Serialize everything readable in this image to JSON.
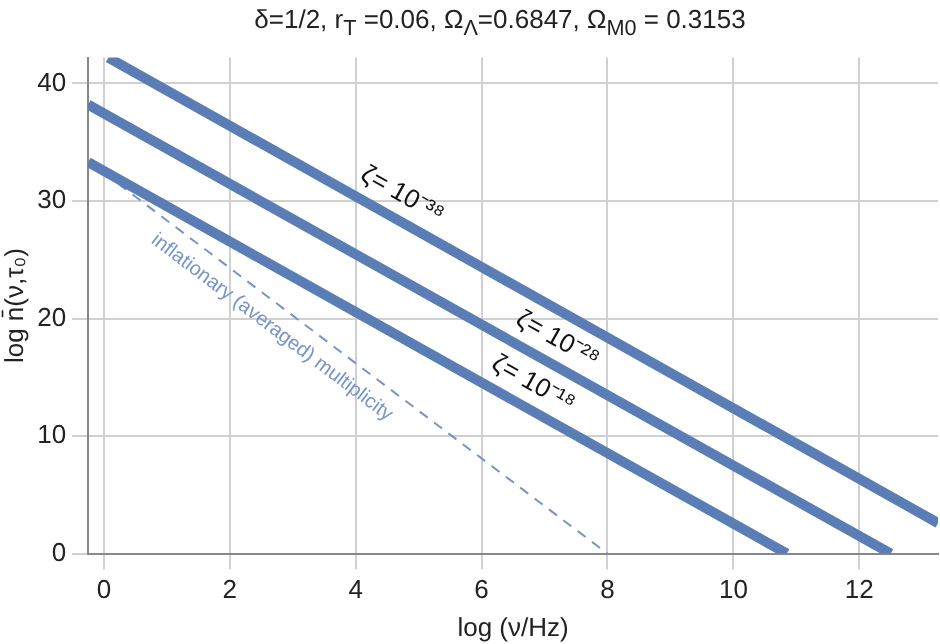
{
  "chart_data": {
    "type": "line",
    "title": "δ=1/2, r$_{T}$ =0.06, Ω$_{Λ}$=0.6847,  Ω$_{M0}$ = 0.3153",
    "xlabel": "log (ν/Hz)",
    "ylabel": "log n̄(ν,τ₀)",
    "xlim": [
      -0.25,
      13.25
    ],
    "ylim": [
      0,
      42.2
    ],
    "xticks": [
      0,
      2,
      4,
      6,
      8,
      10,
      12
    ],
    "yticks": [
      0,
      10,
      20,
      30,
      40
    ],
    "grid": true,
    "legend": false,
    "marker": "none",
    "series": [
      {
        "name": "ζ= 10⁻³⁸",
        "color": "#5a7db5",
        "x": [
          0.07,
          13.25
        ],
        "values": [
          42.2,
          2.6
        ],
        "line_style": "solid"
      },
      {
        "name": "ζ= 10⁻²⁸",
        "color": "#5a7db5",
        "x": [
          -0.25,
          12.5
        ],
        "values": [
          38.2,
          0
        ],
        "line_style": "solid"
      },
      {
        "name": "ζ= 10⁻¹⁸",
        "color": "#5a7db5",
        "x": [
          -0.25,
          10.85
        ],
        "values": [
          33.3,
          0
        ],
        "line_style": "solid"
      },
      {
        "name": "inflationary (averaged) multiplicity",
        "color": "#7893c6",
        "x": [
          0,
          8
        ],
        "values": [
          32.4,
          0
        ],
        "line_style": "dashed"
      }
    ]
  }
}
